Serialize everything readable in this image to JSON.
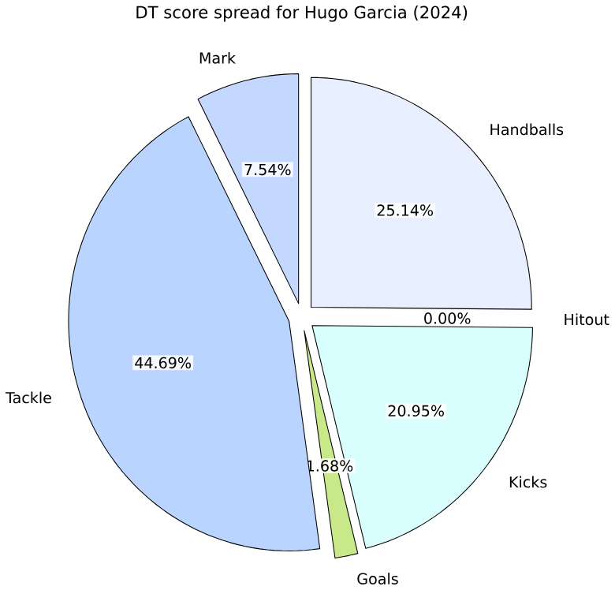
{
  "chart_data": {
    "type": "pie",
    "title": "DT score spread for Hugo Garcia (2024)",
    "categories": [
      "Handballs",
      "Hitout",
      "Kicks",
      "Goals",
      "Tackle",
      "Mark"
    ],
    "values": [
      25.14,
      0.0,
      20.95,
      1.68,
      44.69,
      7.54
    ],
    "value_labels": [
      "25.14%",
      "0.00%",
      "20.95%",
      "1.68%",
      "44.69%",
      "7.54%"
    ],
    "colors": [
      "#e8f0ff",
      "#e0f0f0",
      "#d8fffe",
      "#c8e88a",
      "#b8d4ff",
      "#c4d8ff"
    ]
  }
}
